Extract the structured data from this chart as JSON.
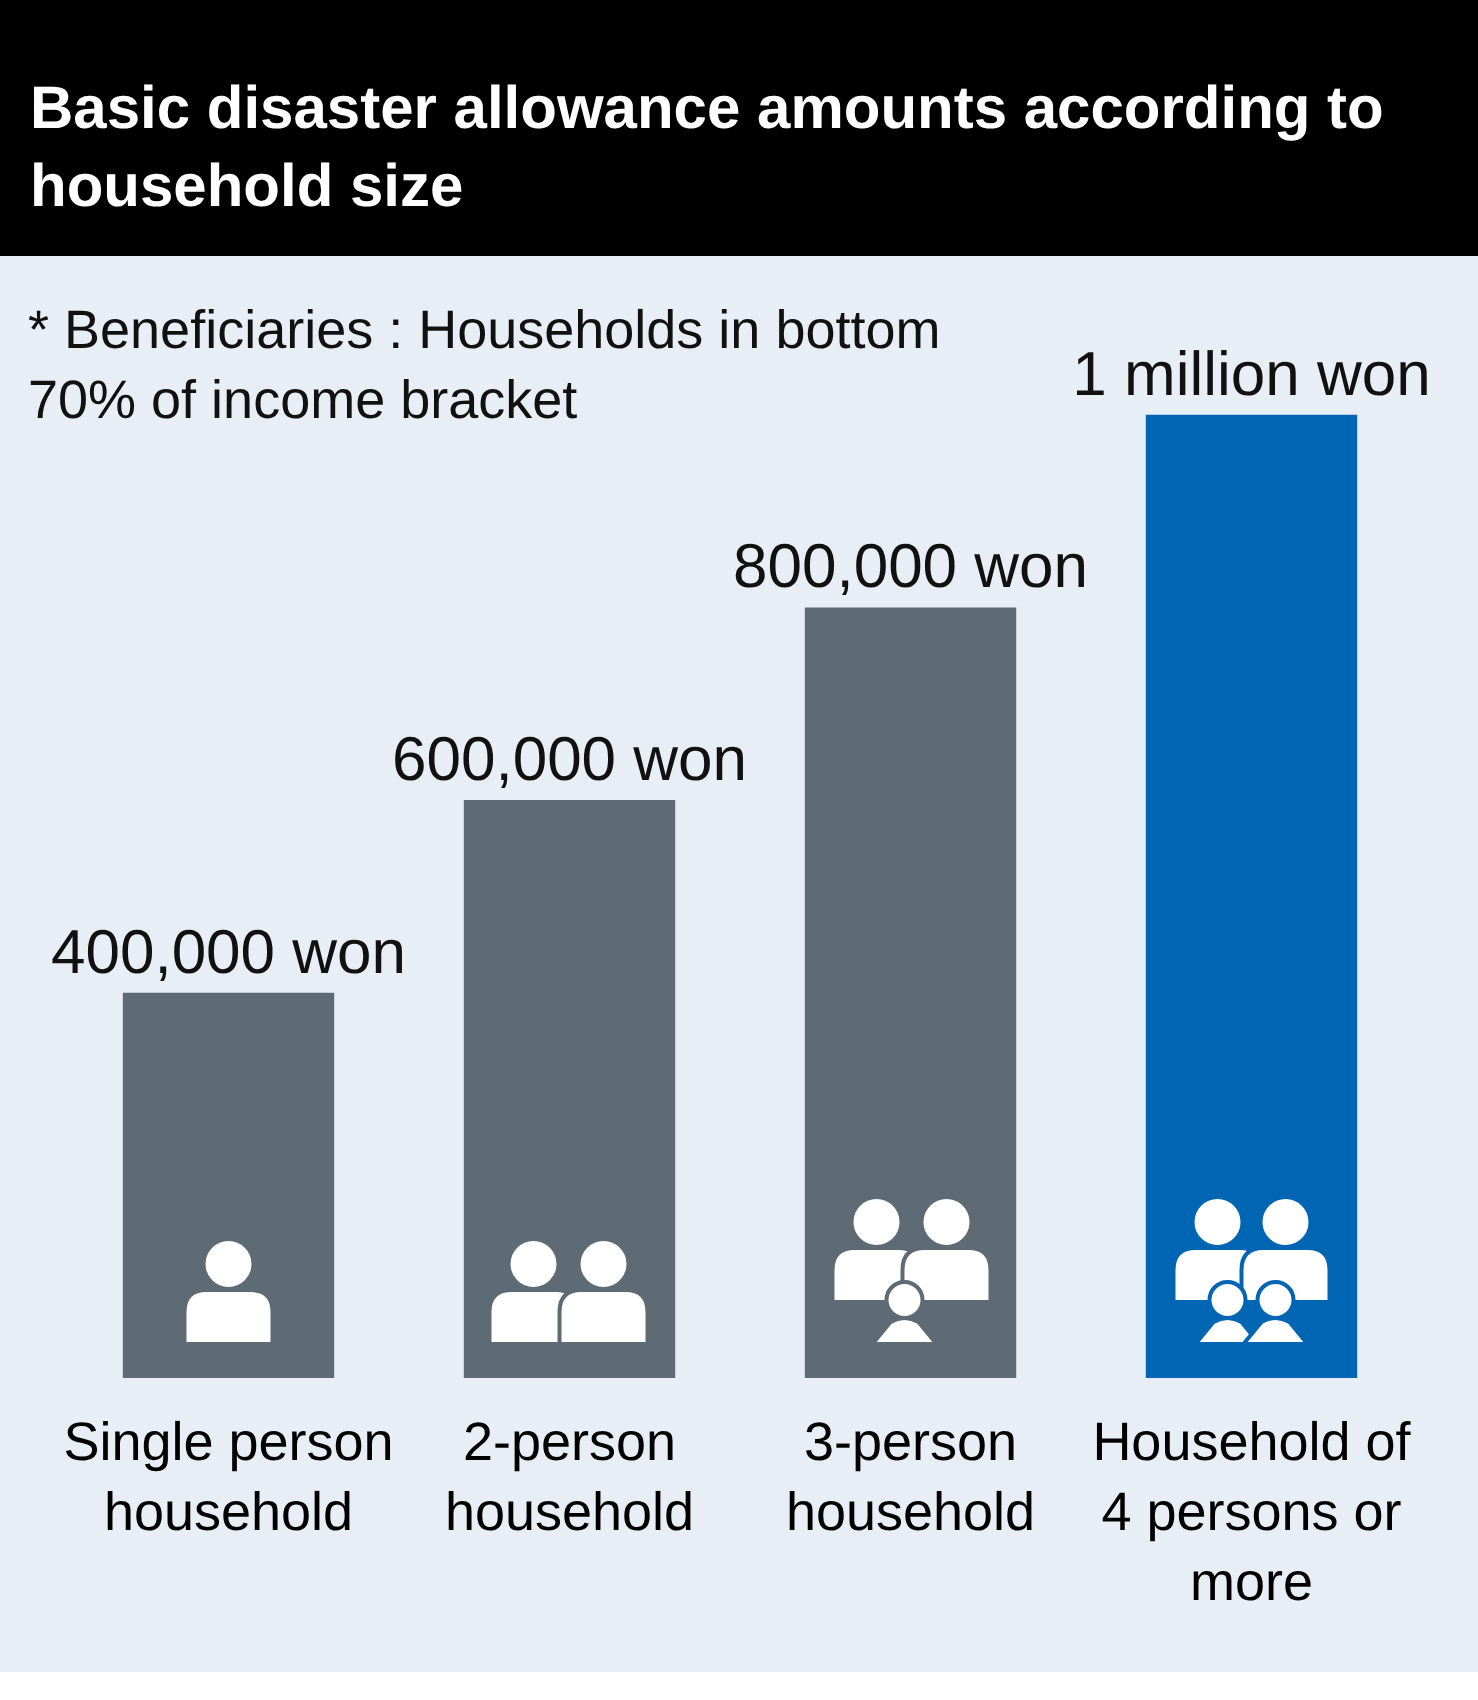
{
  "chart_data": {
    "type": "bar",
    "title": "Basic disaster allowance amounts according to household size",
    "annotations": [
      "* Beneficiaries : Households in bottom 70% of income bracket"
    ],
    "categories": [
      "Single person household",
      "2-person household",
      "3-person household",
      "Household of 4 persons or more"
    ],
    "values": [
      400000,
      600000,
      800000,
      1000000
    ],
    "colors": [
      "#5e6b75",
      "#5e6b75",
      "#5e6b75",
      "#0065b3"
    ],
    "value_labels": [
      "400,000 won",
      "600,000 won",
      "800,000 won",
      "1 million won"
    ],
    "tick_labels": "x"
  }
}
